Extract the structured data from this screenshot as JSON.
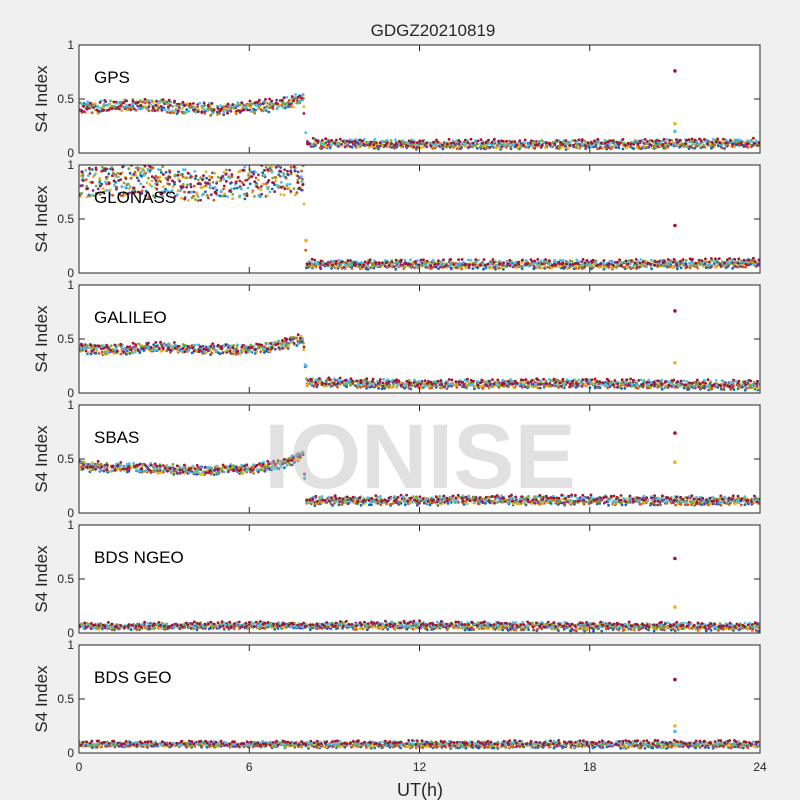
{
  "chart_data": {
    "type": "scatter",
    "title": "GDGZ20210819",
    "xlabel": "UT(h)",
    "ylabel": "S4 Index",
    "xlim": [
      0,
      24
    ],
    "ylim": [
      0,
      1
    ],
    "xticks": [
      0,
      6,
      12,
      18,
      24
    ],
    "yticks": [
      0,
      0.5,
      1
    ],
    "xtick_labels": [
      "0",
      "6",
      "12",
      "18",
      "24"
    ],
    "ytick_labels": [
      "0",
      "0.5",
      "1"
    ],
    "watermark": "IONISE",
    "series_colors": [
      "#0072bd",
      "#d95319",
      "#edb120",
      "#7e2f8e",
      "#77ac30",
      "#4dbeee",
      "#a2142f"
    ],
    "panels": [
      {
        "label": "GPS",
        "profile": [
          [
            0,
            0.42
          ],
          [
            1,
            0.43
          ],
          [
            2,
            0.45
          ],
          [
            3,
            0.44
          ],
          [
            4,
            0.41
          ],
          [
            5,
            0.4
          ],
          [
            6,
            0.42
          ],
          [
            7,
            0.45
          ],
          [
            7.9,
            0.5
          ],
          [
            8.0,
            0.09
          ],
          [
            12,
            0.08
          ],
          [
            18,
            0.08
          ],
          [
            24,
            0.09
          ]
        ],
        "spread": 0.05,
        "spikes": [
          [
            21,
            0.76
          ],
          [
            21,
            0.27
          ],
          [
            21,
            0.2
          ]
        ]
      },
      {
        "label": "GLONASS",
        "profile": [
          [
            0,
            0.82
          ],
          [
            1,
            0.85
          ],
          [
            2,
            0.85
          ],
          [
            3,
            0.84
          ],
          [
            4,
            0.8
          ],
          [
            5,
            0.82
          ],
          [
            6,
            0.84
          ],
          [
            7,
            0.86
          ],
          [
            7.9,
            0.85
          ],
          [
            8.0,
            0.08
          ],
          [
            12,
            0.08
          ],
          [
            18,
            0.08
          ],
          [
            24,
            0.09
          ]
        ],
        "spread": 0.14,
        "spikes": [
          [
            21,
            0.44
          ],
          [
            8.0,
            0.3
          ]
        ]
      },
      {
        "label": "GALILEO",
        "profile": [
          [
            0,
            0.42
          ],
          [
            1,
            0.4
          ],
          [
            2,
            0.41
          ],
          [
            3,
            0.43
          ],
          [
            4,
            0.4
          ],
          [
            5,
            0.41
          ],
          [
            6,
            0.4
          ],
          [
            7,
            0.44
          ],
          [
            7.9,
            0.5
          ],
          [
            8.0,
            0.1
          ],
          [
            12,
            0.08
          ],
          [
            18,
            0.09
          ],
          [
            24,
            0.07
          ]
        ],
        "spread": 0.04,
        "spikes": [
          [
            21,
            0.76
          ],
          [
            21,
            0.28
          ],
          [
            8.0,
            0.25
          ]
        ]
      },
      {
        "label": "SBAS",
        "profile": [
          [
            0,
            0.44
          ],
          [
            1,
            0.42
          ],
          [
            2,
            0.42
          ],
          [
            3,
            0.41
          ],
          [
            4,
            0.4
          ],
          [
            5,
            0.4
          ],
          [
            6,
            0.41
          ],
          [
            7,
            0.44
          ],
          [
            7.9,
            0.53
          ],
          [
            8.0,
            0.11
          ],
          [
            12,
            0.12
          ],
          [
            18,
            0.12
          ],
          [
            24,
            0.11
          ]
        ],
        "spread": 0.04,
        "spikes": [
          [
            21,
            0.74
          ],
          [
            21,
            0.47
          ]
        ]
      },
      {
        "label": "BDS NGEO",
        "profile": [
          [
            0,
            0.06
          ],
          [
            6,
            0.07
          ],
          [
            12,
            0.07
          ],
          [
            18,
            0.06
          ],
          [
            24,
            0.06
          ]
        ],
        "spread": 0.025,
        "spikes": [
          [
            21,
            0.69
          ],
          [
            21,
            0.24
          ]
        ]
      },
      {
        "label": "BDS GEO",
        "profile": [
          [
            0,
            0.08
          ],
          [
            6,
            0.08
          ],
          [
            12,
            0.08
          ],
          [
            18,
            0.08
          ],
          [
            24,
            0.08
          ]
        ],
        "spread": 0.02,
        "spikes": [
          [
            21,
            0.68
          ],
          [
            21,
            0.25
          ],
          [
            21,
            0.2
          ]
        ]
      }
    ]
  }
}
